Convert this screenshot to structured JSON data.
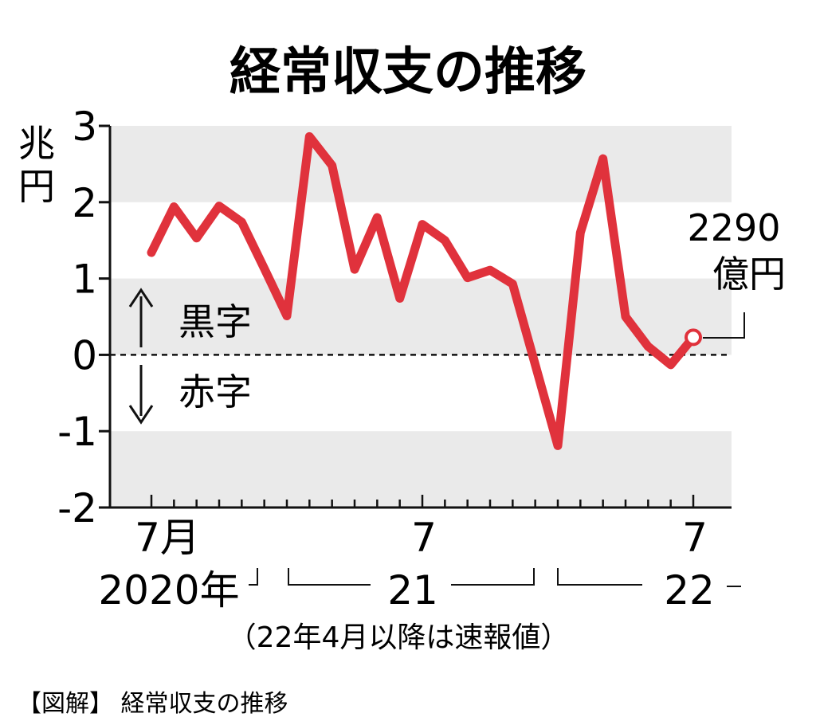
{
  "chart_data": {
    "type": "line",
    "title": "経常収支の推移",
    "ylabel": "兆円",
    "ylim": [
      -2,
      3
    ],
    "yticks": [
      "3",
      "2",
      "1",
      "0",
      "-1",
      "-2"
    ],
    "grid": "alternating gray bands",
    "x_tick_labels": [
      "7月",
      "7",
      "7"
    ],
    "year_labels": [
      "2020年",
      "21",
      "22"
    ],
    "note": "（22年4月以降は速報値）",
    "annotations": {
      "surplus": "黒字",
      "deficit": "赤字",
      "last_value": "2290",
      "last_unit": "億円"
    },
    "series": [
      {
        "color": "#e0323c",
        "x": [
          "2020-07",
          "2020-08",
          "2020-09",
          "2020-10",
          "2020-11",
          "2020-12",
          "2021-01",
          "2021-02",
          "2021-03",
          "2021-04",
          "2021-05",
          "2021-06",
          "2021-07",
          "2021-08",
          "2021-09",
          "2021-10",
          "2021-11",
          "2021-12",
          "2022-01",
          "2022-02",
          "2022-03",
          "2022-04",
          "2022-05",
          "2022-06",
          "2022-07"
        ],
        "values": [
          1.34,
          1.94,
          1.53,
          1.95,
          1.74,
          1.13,
          0.51,
          2.86,
          2.48,
          1.12,
          1.8,
          0.74,
          1.71,
          1.5,
          1.01,
          1.11,
          0.93,
          -0.13,
          -1.19,
          1.6,
          2.57,
          0.5,
          0.11,
          -0.13,
          0.23
        ]
      }
    ]
  },
  "caption": "【図解】 経常収支の推移"
}
